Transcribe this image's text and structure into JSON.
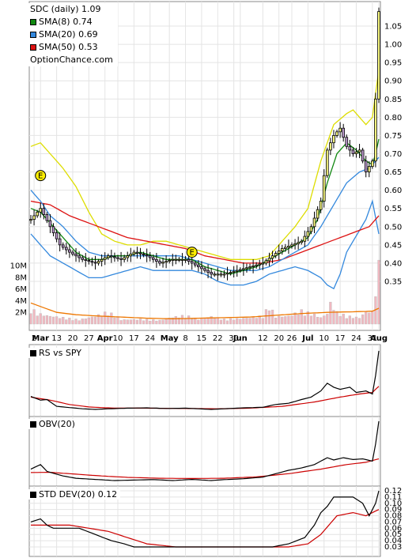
{
  "legend": {
    "ticker": "SDC (daily) 1.09",
    "sma8": "SMA(8) 0.74",
    "sma20": "SMA(20) 0.69",
    "sma50": "SMA(50) 0.53",
    "source": "OptionChance.com"
  },
  "colors": {
    "sma8": "#118811",
    "sma20": "#3388dd",
    "sma50": "#dd1111",
    "upper_band": "#dddd00",
    "volume": "#f0b8c0",
    "volume_avg": "#ee7700",
    "up_candle": "#f8f880",
    "down_candle": "#bb99cc"
  },
  "panels": {
    "rs": {
      "label": "RS vs SPY"
    },
    "obv": {
      "label": "OBV(20)"
    },
    "std": {
      "label": "STD DEV(20) 0.12"
    }
  },
  "chart_data": {
    "type": "line",
    "title": "SDC (daily) 1.09",
    "price_axis": {
      "ticks": [
        "1.05",
        "1.00",
        "0.95",
        "0.90",
        "0.85",
        "0.80",
        "0.75",
        "0.70",
        "0.65",
        "0.60",
        "0.55",
        "0.50",
        "0.45",
        "0.40",
        "0.35"
      ],
      "range": [
        0.33,
        1.1
      ]
    },
    "volume_axis": {
      "ticks": [
        "10M",
        "8M",
        "6M",
        "4M",
        "2M"
      ],
      "range": [
        0,
        12
      ]
    },
    "std_axis": {
      "ticks": [
        "0.12",
        "0.11",
        "0.10",
        "0.09",
        "0.08",
        "0.07",
        "0.06",
        "0.05",
        "0.04",
        "0.03"
      ],
      "range": [
        0.025,
        0.125
      ]
    },
    "x_labels": [
      {
        "text": "2",
        "i": 1,
        "bold": false
      },
      {
        "text": "Mar",
        "i": 3,
        "bold": true
      },
      {
        "text": "13",
        "i": 8,
        "bold": false
      },
      {
        "text": "20",
        "i": 13,
        "bold": false
      },
      {
        "text": "27",
        "i": 18,
        "bold": false
      },
      {
        "text": "Apr",
        "i": 23,
        "bold": true
      },
      {
        "text": "10",
        "i": 27,
        "bold": false
      },
      {
        "text": "17",
        "i": 32,
        "bold": false
      },
      {
        "text": "24",
        "i": 37,
        "bold": false
      },
      {
        "text": "May",
        "i": 43,
        "bold": true
      },
      {
        "text": "8",
        "i": 48,
        "bold": false
      },
      {
        "text": "15",
        "i": 53,
        "bold": false
      },
      {
        "text": "22",
        "i": 58,
        "bold": false
      },
      {
        "text": "30",
        "i": 63,
        "bold": false
      },
      {
        "text": "Jun",
        "i": 65,
        "bold": true
      },
      {
        "text": "12",
        "i": 72,
        "bold": false
      },
      {
        "text": "20",
        "i": 77,
        "bold": false
      },
      {
        "text": "26",
        "i": 81,
        "bold": false
      },
      {
        "text": "Jul",
        "i": 86,
        "bold": true
      },
      {
        "text": "10",
        "i": 91,
        "bold": false
      },
      {
        "text": "17",
        "i": 96,
        "bold": false
      },
      {
        "text": "24",
        "i": 101,
        "bold": false
      },
      {
        "text": "31",
        "i": 106,
        "bold": false
      },
      {
        "text": "Aug",
        "i": 108,
        "bold": true
      }
    ],
    "earnings": [
      {
        "label": "E",
        "i": 3,
        "y": 0.64
      },
      {
        "label": "E",
        "i": 50,
        "y": 0.43
      }
    ],
    "price_key": [
      [
        0,
        0.52
      ],
      [
        3,
        0.55
      ],
      [
        6,
        0.5
      ],
      [
        9,
        0.45
      ],
      [
        12,
        0.43
      ],
      [
        16,
        0.41
      ],
      [
        20,
        0.4
      ],
      [
        24,
        0.42
      ],
      [
        28,
        0.41
      ],
      [
        32,
        0.43
      ],
      [
        36,
        0.42
      ],
      [
        40,
        0.4
      ],
      [
        44,
        0.41
      ],
      [
        48,
        0.41
      ],
      [
        52,
        0.39
      ],
      [
        56,
        0.37
      ],
      [
        60,
        0.37
      ],
      [
        64,
        0.38
      ],
      [
        68,
        0.39
      ],
      [
        72,
        0.4
      ],
      [
        75,
        0.42
      ],
      [
        78,
        0.44
      ],
      [
        81,
        0.45
      ],
      [
        84,
        0.46
      ],
      [
        87,
        0.5
      ],
      [
        90,
        0.57
      ],
      [
        92,
        0.71
      ],
      [
        94,
        0.75
      ],
      [
        96,
        0.77
      ],
      [
        98,
        0.72
      ],
      [
        100,
        0.7
      ],
      [
        102,
        0.71
      ],
      [
        104,
        0.65
      ],
      [
        106,
        0.68
      ],
      [
        107,
        0.85
      ],
      [
        108,
        1.09
      ]
    ],
    "sma8_key": [
      [
        0,
        0.55
      ],
      [
        3,
        0.54
      ],
      [
        6,
        0.51
      ],
      [
        10,
        0.47
      ],
      [
        14,
        0.43
      ],
      [
        18,
        0.41
      ],
      [
        22,
        0.41
      ],
      [
        26,
        0.42
      ],
      [
        30,
        0.42
      ],
      [
        34,
        0.43
      ],
      [
        38,
        0.42
      ],
      [
        42,
        0.41
      ],
      [
        46,
        0.41
      ],
      [
        50,
        0.41
      ],
      [
        54,
        0.39
      ],
      [
        58,
        0.38
      ],
      [
        62,
        0.37
      ],
      [
        66,
        0.38
      ],
      [
        70,
        0.39
      ],
      [
        74,
        0.41
      ],
      [
        78,
        0.43
      ],
      [
        82,
        0.45
      ],
      [
        86,
        0.47
      ],
      [
        89,
        0.52
      ],
      [
        92,
        0.62
      ],
      [
        95,
        0.7
      ],
      [
        98,
        0.73
      ],
      [
        101,
        0.71
      ],
      [
        104,
        0.68
      ],
      [
        106,
        0.67
      ],
      [
        107,
        0.7
      ],
      [
        108,
        0.74
      ]
    ],
    "sma20_key": [
      [
        0,
        0.6
      ],
      [
        3,
        0.57
      ],
      [
        6,
        0.53
      ],
      [
        10,
        0.5
      ],
      [
        14,
        0.46
      ],
      [
        18,
        0.43
      ],
      [
        22,
        0.42
      ],
      [
        26,
        0.42
      ],
      [
        30,
        0.42
      ],
      [
        34,
        0.42
      ],
      [
        38,
        0.42
      ],
      [
        42,
        0.42
      ],
      [
        46,
        0.42
      ],
      [
        50,
        0.41
      ],
      [
        54,
        0.4
      ],
      [
        58,
        0.39
      ],
      [
        62,
        0.38
      ],
      [
        66,
        0.38
      ],
      [
        70,
        0.38
      ],
      [
        74,
        0.39
      ],
      [
        78,
        0.41
      ],
      [
        82,
        0.43
      ],
      [
        86,
        0.45
      ],
      [
        90,
        0.5
      ],
      [
        94,
        0.56
      ],
      [
        98,
        0.62
      ],
      [
        102,
        0.65
      ],
      [
        105,
        0.66
      ],
      [
        108,
        0.69
      ]
    ],
    "sma50_key": [
      [
        0,
        0.57
      ],
      [
        6,
        0.56
      ],
      [
        12,
        0.53
      ],
      [
        18,
        0.51
      ],
      [
        24,
        0.49
      ],
      [
        30,
        0.47
      ],
      [
        36,
        0.46
      ],
      [
        42,
        0.45
      ],
      [
        48,
        0.44
      ],
      [
        54,
        0.42
      ],
      [
        60,
        0.41
      ],
      [
        66,
        0.4
      ],
      [
        72,
        0.4
      ],
      [
        78,
        0.41
      ],
      [
        84,
        0.43
      ],
      [
        90,
        0.45
      ],
      [
        96,
        0.47
      ],
      [
        102,
        0.49
      ],
      [
        105,
        0.5
      ],
      [
        108,
        0.53
      ]
    ],
    "upper_band_key": [
      [
        0,
        0.72
      ],
      [
        3,
        0.73
      ],
      [
        6,
        0.7
      ],
      [
        10,
        0.66
      ],
      [
        14,
        0.61
      ],
      [
        18,
        0.54
      ],
      [
        22,
        0.48
      ],
      [
        26,
        0.46
      ],
      [
        30,
        0.45
      ],
      [
        34,
        0.45
      ],
      [
        38,
        0.46
      ],
      [
        42,
        0.46
      ],
      [
        46,
        0.45
      ],
      [
        50,
        0.44
      ],
      [
        54,
        0.43
      ],
      [
        58,
        0.42
      ],
      [
        62,
        0.41
      ],
      [
        66,
        0.41
      ],
      [
        70,
        0.41
      ],
      [
        74,
        0.42
      ],
      [
        78,
        0.46
      ],
      [
        82,
        0.5
      ],
      [
        86,
        0.55
      ],
      [
        90,
        0.68
      ],
      [
        94,
        0.78
      ],
      [
        98,
        0.81
      ],
      [
        100,
        0.82
      ],
      [
        102,
        0.8
      ],
      [
        104,
        0.78
      ],
      [
        106,
        0.8
      ],
      [
        108,
        0.93
      ]
    ],
    "lower_band_key": [
      [
        0,
        0.48
      ],
      [
        3,
        0.45
      ],
      [
        6,
        0.42
      ],
      [
        10,
        0.4
      ],
      [
        14,
        0.38
      ],
      [
        18,
        0.36
      ],
      [
        22,
        0.36
      ],
      [
        26,
        0.37
      ],
      [
        30,
        0.38
      ],
      [
        34,
        0.39
      ],
      [
        38,
        0.38
      ],
      [
        42,
        0.38
      ],
      [
        46,
        0.38
      ],
      [
        50,
        0.38
      ],
      [
        54,
        0.37
      ],
      [
        58,
        0.35
      ],
      [
        62,
        0.34
      ],
      [
        66,
        0.34
      ],
      [
        70,
        0.35
      ],
      [
        74,
        0.37
      ],
      [
        78,
        0.38
      ],
      [
        82,
        0.39
      ],
      [
        86,
        0.38
      ],
      [
        90,
        0.36
      ],
      [
        92,
        0.34
      ],
      [
        94,
        0.33
      ],
      [
        96,
        0.37
      ],
      [
        98,
        0.43
      ],
      [
        100,
        0.46
      ],
      [
        102,
        0.49
      ],
      [
        104,
        0.52
      ],
      [
        106,
        0.57
      ],
      [
        108,
        0.48
      ]
    ],
    "volume_key": [
      [
        0,
        3.0
      ],
      [
        2,
        2.0
      ],
      [
        5,
        1.6
      ],
      [
        10,
        1.2
      ],
      [
        15,
        0.8
      ],
      [
        20,
        1.5
      ],
      [
        24,
        2.3
      ],
      [
        28,
        0.8
      ],
      [
        34,
        0.9
      ],
      [
        40,
        0.7
      ],
      [
        44,
        1.3
      ],
      [
        48,
        1.6
      ],
      [
        52,
        0.9
      ],
      [
        56,
        1.4
      ],
      [
        60,
        0.9
      ],
      [
        64,
        1.0
      ],
      [
        68,
        1.2
      ],
      [
        72,
        1.5
      ],
      [
        74,
        3.5
      ],
      [
        76,
        1.4
      ],
      [
        80,
        1.5
      ],
      [
        84,
        2.5
      ],
      [
        88,
        1.8
      ],
      [
        90,
        1.2
      ],
      [
        92,
        2.0
      ],
      [
        93,
        4.0
      ],
      [
        95,
        2.2
      ],
      [
        98,
        1.5
      ],
      [
        102,
        1.2
      ],
      [
        104,
        2.4
      ],
      [
        106,
        2.3
      ],
      [
        107,
        6.5
      ],
      [
        108,
        11.0
      ]
    ],
    "volume_avg_key": [
      [
        0,
        3.6
      ],
      [
        3,
        3.0
      ],
      [
        8,
        2.0
      ],
      [
        14,
        1.6
      ],
      [
        20,
        1.4
      ],
      [
        28,
        1.2
      ],
      [
        36,
        1.0
      ],
      [
        44,
        0.9
      ],
      [
        52,
        1.0
      ],
      [
        60,
        1.1
      ],
      [
        68,
        1.2
      ],
      [
        76,
        1.5
      ],
      [
        84,
        1.8
      ],
      [
        92,
        2.0
      ],
      [
        100,
        2.1
      ],
      [
        106,
        2.2
      ],
      [
        108,
        2.7
      ]
    ],
    "rs_key": [
      [
        0,
        0.42
      ],
      [
        3,
        0.3
      ],
      [
        5,
        0.32
      ],
      [
        8,
        0.1
      ],
      [
        12,
        0.06
      ],
      [
        16,
        0.02
      ],
      [
        20,
        0.0
      ],
      [
        24,
        0.02
      ],
      [
        30,
        0.04
      ],
      [
        36,
        0.05
      ],
      [
        42,
        0.03
      ],
      [
        48,
        0.04
      ],
      [
        52,
        0.02
      ],
      [
        56,
        0.0
      ],
      [
        60,
        0.02
      ],
      [
        66,
        0.05
      ],
      [
        72,
        0.07
      ],
      [
        76,
        0.16
      ],
      [
        80,
        0.2
      ],
      [
        84,
        0.32
      ],
      [
        87,
        0.4
      ],
      [
        90,
        0.6
      ],
      [
        92,
        0.85
      ],
      [
        94,
        0.72
      ],
      [
        96,
        0.65
      ],
      [
        99,
        0.72
      ],
      [
        101,
        0.55
      ],
      [
        104,
        0.6
      ],
      [
        106,
        0.5
      ],
      [
        107,
        1.1
      ],
      [
        108,
        1.9
      ]
    ],
    "rs_avg_key": [
      [
        0,
        0.4
      ],
      [
        6,
        0.3
      ],
      [
        12,
        0.16
      ],
      [
        18,
        0.08
      ],
      [
        26,
        0.04
      ],
      [
        36,
        0.04
      ],
      [
        48,
        0.03
      ],
      [
        58,
        0.02
      ],
      [
        68,
        0.04
      ],
      [
        78,
        0.1
      ],
      [
        88,
        0.24
      ],
      [
        96,
        0.4
      ],
      [
        102,
        0.5
      ],
      [
        106,
        0.55
      ],
      [
        108,
        0.75
      ]
    ],
    "obv_key": [
      [
        0,
        0.5
      ],
      [
        3,
        0.7
      ],
      [
        5,
        0.4
      ],
      [
        10,
        0.2
      ],
      [
        14,
        0.1
      ],
      [
        20,
        0.05
      ],
      [
        26,
        0.0
      ],
      [
        32,
        0.02
      ],
      [
        38,
        0.04
      ],
      [
        44,
        0.0
      ],
      [
        50,
        0.05
      ],
      [
        56,
        0.0
      ],
      [
        60,
        0.04
      ],
      [
        66,
        0.08
      ],
      [
        72,
        0.15
      ],
      [
        76,
        0.3
      ],
      [
        80,
        0.45
      ],
      [
        84,
        0.55
      ],
      [
        88,
        0.7
      ],
      [
        92,
        1.0
      ],
      [
        94,
        0.9
      ],
      [
        97,
        1.0
      ],
      [
        100,
        0.92
      ],
      [
        103,
        0.95
      ],
      [
        106,
        0.85
      ],
      [
        107,
        1.6
      ],
      [
        108,
        2.6
      ]
    ],
    "obv_avg_key": [
      [
        0,
        0.35
      ],
      [
        6,
        0.36
      ],
      [
        14,
        0.28
      ],
      [
        22,
        0.2
      ],
      [
        30,
        0.14
      ],
      [
        40,
        0.1
      ],
      [
        50,
        0.09
      ],
      [
        60,
        0.1
      ],
      [
        70,
        0.16
      ],
      [
        80,
        0.3
      ],
      [
        90,
        0.5
      ],
      [
        98,
        0.7
      ],
      [
        104,
        0.8
      ],
      [
        108,
        0.95
      ]
    ],
    "std_key": [
      [
        0,
        0.07
      ],
      [
        3,
        0.075
      ],
      [
        5,
        0.065
      ],
      [
        7,
        0.06
      ],
      [
        15,
        0.06
      ],
      [
        20,
        0.05
      ],
      [
        25,
        0.04
      ],
      [
        29,
        0.035
      ],
      [
        32,
        0.03
      ],
      [
        36,
        0.03
      ],
      [
        44,
        0.03
      ],
      [
        55,
        0.03
      ],
      [
        65,
        0.03
      ],
      [
        75,
        0.03
      ],
      [
        80,
        0.035
      ],
      [
        85,
        0.045
      ],
      [
        88,
        0.065
      ],
      [
        90,
        0.085
      ],
      [
        92,
        0.095
      ],
      [
        94,
        0.11
      ],
      [
        100,
        0.11
      ],
      [
        103,
        0.1
      ],
      [
        105,
        0.08
      ],
      [
        107,
        0.1
      ],
      [
        108,
        0.12
      ]
    ],
    "std_avg_key": [
      [
        0,
        0.065
      ],
      [
        5,
        0.065
      ],
      [
        12,
        0.065
      ],
      [
        18,
        0.06
      ],
      [
        24,
        0.055
      ],
      [
        30,
        0.045
      ],
      [
        36,
        0.035
      ],
      [
        45,
        0.03
      ],
      [
        70,
        0.03
      ],
      [
        80,
        0.03
      ],
      [
        86,
        0.035
      ],
      [
        90,
        0.05
      ],
      [
        95,
        0.08
      ],
      [
        100,
        0.085
      ],
      [
        104,
        0.08
      ],
      [
        108,
        0.09
      ]
    ]
  }
}
